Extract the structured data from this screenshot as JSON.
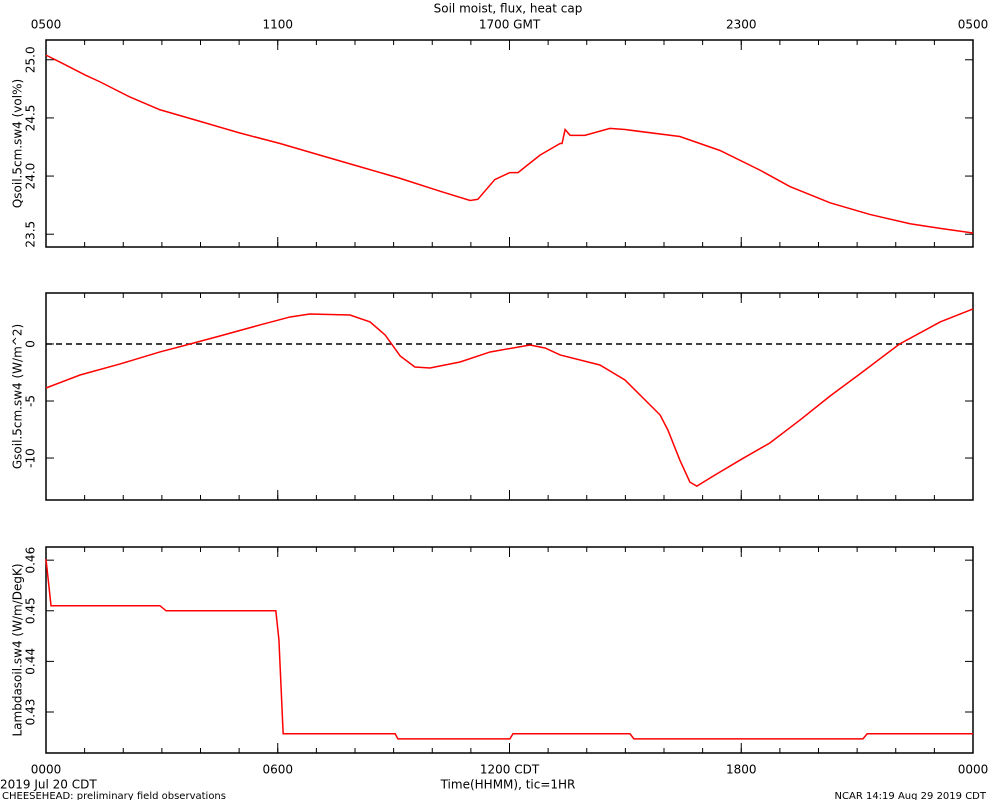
{
  "title": "Soil moist, flux, heat cap",
  "x_axis": {
    "label": "Time(HHMM), tic=1HR",
    "xlim": [
      0,
      24
    ],
    "xticks": [
      {
        "value": 0,
        "label": "0000"
      },
      {
        "value": 6,
        "label": "0600"
      },
      {
        "value": 12,
        "label": "1200 CDT"
      },
      {
        "value": 18,
        "label": "1800"
      },
      {
        "value": 24,
        "label": "0000"
      }
    ],
    "top_xticks": [
      {
        "value": 0,
        "label": "0500"
      },
      {
        "value": 6,
        "label": "1100"
      },
      {
        "value": 12,
        "label": "1700 GMT"
      },
      {
        "value": 18,
        "label": "2300"
      },
      {
        "value": 24,
        "label": "0500"
      }
    ],
    "minor_xticks": [
      0,
      1,
      2,
      3,
      4,
      5,
      6,
      7,
      8,
      9,
      10,
      11,
      12,
      13,
      14,
      15,
      16,
      17,
      18,
      19,
      20,
      21,
      22,
      23,
      24
    ]
  },
  "footer": {
    "date": "2019 Jul 20 CDT",
    "project": "CHEESEHEAD: preliminary field observations",
    "credit": "NCAR 14:19 Aug 29 2019 CDT"
  },
  "chart_data": [
    {
      "type": "line",
      "y_label": "Qsoil.5cm.sw4 (vol%)",
      "color": "#ff0000",
      "ylim": [
        23.39,
        25.17
      ],
      "yticks": [
        {
          "value": 25.0,
          "label": "25.0"
        },
        {
          "value": 24.5,
          "label": "24.5"
        },
        {
          "value": 24.0,
          "label": "24.0"
        },
        {
          "value": 23.5,
          "label": "23.5"
        }
      ],
      "x": [
        0,
        0.36,
        1.01,
        1.4,
        2.17,
        2.95,
        3.99,
        5.02,
        6.06,
        7.09,
        8.13,
        9.17,
        10.2,
        10.98,
        11.18,
        11.62,
        12.01,
        12.22,
        12.79,
        13.31,
        13.36,
        13.44,
        13.57,
        13.95,
        14.6,
        14.99,
        16.41,
        17.45,
        18.49,
        19.26,
        20.3,
        21.33,
        22.37,
        23.15,
        24
      ],
      "values": [
        25.04,
        24.98,
        24.87,
        24.81,
        24.68,
        24.57,
        24.47,
        24.37,
        24.28,
        24.18,
        24.08,
        23.98,
        23.87,
        23.79,
        23.8,
        23.97,
        24.03,
        24.03,
        24.18,
        24.28,
        24.28,
        24.4,
        24.35,
        24.35,
        24.41,
        24.4,
        24.34,
        24.22,
        24.05,
        23.91,
        23.77,
        23.67,
        23.59,
        23.55,
        23.51
      ]
    },
    {
      "type": "line",
      "y_label": "Gsoil.5cm.sw4 (W/m^2)",
      "color": "#ff0000",
      "ylim": [
        -13.68,
        4.47
      ],
      "yticks": [
        0,
        -5,
        -10
      ],
      "hline": 0,
      "x": [
        0,
        0.88,
        1.92,
        2.95,
        3.73,
        4.5,
        5.54,
        6.32,
        6.83,
        7.87,
        8.39,
        8.78,
        9.17,
        9.55,
        9.94,
        10.72,
        11.5,
        12.53,
        12.92,
        13.31,
        14.34,
        14.99,
        15.64,
        15.9,
        16.1,
        16.41,
        16.67,
        16.85,
        17.32,
        17.97,
        18.74,
        19.52,
        20.3,
        21.07,
        22.1,
        23.15,
        24
      ],
      "values": [
        -3.86,
        -2.72,
        -1.75,
        -0.7,
        0,
        0.7,
        1.67,
        2.37,
        2.63,
        2.54,
        1.93,
        0.79,
        -1.05,
        -2.02,
        -2.11,
        -1.58,
        -0.7,
        -0.09,
        -0.35,
        -0.96,
        -1.84,
        -3.16,
        -5.35,
        -6.23,
        -7.54,
        -10.18,
        -12.11,
        -12.46,
        -11.49,
        -10.18,
        -8.68,
        -6.67,
        -4.56,
        -2.63,
        0,
        1.93,
        3.07
      ]
    },
    {
      "type": "line",
      "y_label": "Lambdasoil.sw4 (W/m/DegK)",
      "color": "#ff0000",
      "ylim": [
        0.4219,
        0.4626
      ],
      "yticks": [
        0.46,
        0.45,
        0.44,
        0.43
      ],
      "x": [
        0,
        0.13,
        2.95,
        3.11,
        5.95,
        6.03,
        6.14,
        9.04,
        9.11,
        12.01,
        12.09,
        15.12,
        15.22,
        21.15,
        21.26,
        24
      ],
      "values": [
        0.4602,
        0.451,
        0.451,
        0.45,
        0.45,
        0.4443,
        0.4257,
        0.4257,
        0.4247,
        0.4247,
        0.4257,
        0.4257,
        0.4247,
        0.4247,
        0.4257,
        0.4257
      ]
    }
  ]
}
